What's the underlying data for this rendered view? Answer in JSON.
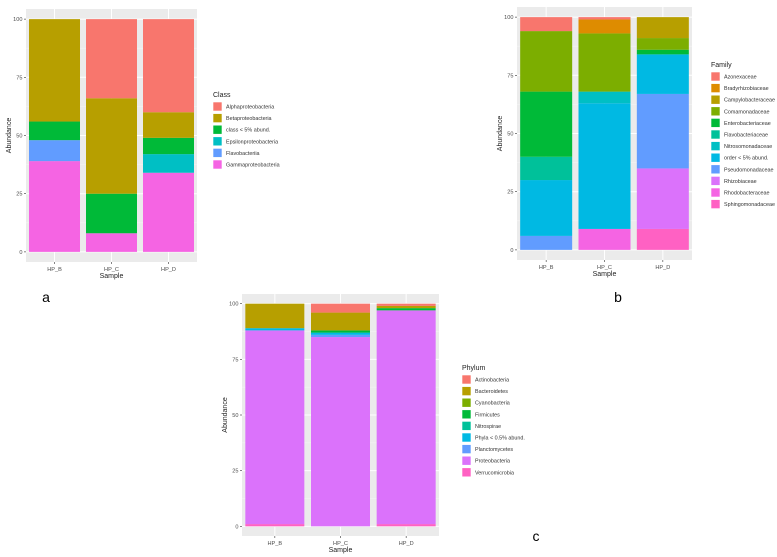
{
  "chart_data": [
    {
      "type": "bar",
      "stacked": true,
      "panel_label": "a",
      "xlabel": "Sample",
      "ylabel": "Abundance",
      "ylim": [
        0,
        100
      ],
      "yticks": [
        0,
        25,
        50,
        75,
        100
      ],
      "categories": [
        "HP_B",
        "HP_C",
        "HP_D"
      ],
      "legend_title": "Class",
      "legend_position": "right",
      "series": [
        {
          "name": "Gammaproteobacteria",
          "color": "#F564E3",
          "values": [
            39,
            8,
            34
          ]
        },
        {
          "name": "Flavobacteriia",
          "color": "#619CFF",
          "values": [
            9,
            0,
            0
          ]
        },
        {
          "name": "Epsilonproteobacteria",
          "color": "#00BFC4",
          "values": [
            0,
            0,
            8
          ]
        },
        {
          "name": "class < 5% abund.",
          "color": "#00BA38",
          "values": [
            8,
            17,
            7
          ]
        },
        {
          "name": "Betaproteobacteria",
          "color": "#B79F00",
          "values": [
            44,
            41,
            11
          ]
        },
        {
          "name": "Alphaproteobacteria",
          "color": "#F8766D",
          "values": [
            0,
            34,
            40
          ]
        }
      ],
      "legend_order": [
        "Alphaproteobacteria",
        "Betaproteobacteria",
        "class < 5% abund.",
        "Epsilonproteobacteria",
        "Flavobacteriia",
        "Gammaproteobacteria"
      ]
    },
    {
      "type": "bar",
      "stacked": true,
      "panel_label": "b",
      "xlabel": "Sample",
      "ylabel": "Abundance",
      "ylim": [
        0,
        100
      ],
      "yticks": [
        0,
        25,
        50,
        75,
        100
      ],
      "categories": [
        "HP_B",
        "HP_C",
        "HP_D"
      ],
      "legend_title": "Family",
      "legend_position": "right",
      "series": [
        {
          "name": "Sphingomonadaceae",
          "color": "#FF61C3",
          "values": [
            0,
            0,
            9
          ]
        },
        {
          "name": "Rhodobacteraceae",
          "color": "#F564E3",
          "values": [
            0,
            9,
            0
          ]
        },
        {
          "name": "Rhizobiaceae",
          "color": "#DB72FB",
          "values": [
            0,
            0,
            26
          ]
        },
        {
          "name": "Pseudomonadaceae",
          "color": "#619CFF",
          "values": [
            6,
            0,
            32
          ]
        },
        {
          "name": "order < 5% abund.",
          "color": "#00B9E3",
          "values": [
            24,
            54,
            17
          ]
        },
        {
          "name": "Nitrosomonadaceae",
          "color": "#00BFC4",
          "values": [
            0,
            5,
            0
          ]
        },
        {
          "name": "Flavobacteriaceae",
          "color": "#00C19A",
          "values": [
            10,
            0,
            0
          ]
        },
        {
          "name": "Enterobacteriaceae",
          "color": "#00BA38",
          "values": [
            28,
            0,
            2
          ]
        },
        {
          "name": "Comamonadaceae",
          "color": "#7CAE00",
          "values": [
            26,
            25,
            5
          ]
        },
        {
          "name": "Campylobacteraceae",
          "color": "#B79F00",
          "values": [
            0,
            0,
            9
          ]
        },
        {
          "name": "Bradyrhizobiaceae",
          "color": "#DE8C00",
          "values": [
            0,
            6,
            0
          ]
        },
        {
          "name": "Azonexaceae",
          "color": "#F8766D",
          "values": [
            6,
            1,
            0
          ]
        }
      ],
      "legend_order": [
        "Azonexaceae",
        "Bradyrhizobiaceae",
        "Campylobacteraceae",
        "Comamonadaceae",
        "Enterobacteriaceae",
        "Flavobacteriaceae",
        "Nitrosomonadaceae",
        "order < 5% abund.",
        "Pseudomonadaceae",
        "Rhizobiaceae",
        "Rhodobacteraceae",
        "Sphingomonadaceae"
      ]
    },
    {
      "type": "bar",
      "stacked": true,
      "panel_label": "c",
      "xlabel": "Sample",
      "ylabel": "Abundance",
      "ylim": [
        0,
        100
      ],
      "yticks": [
        0,
        25,
        50,
        75,
        100
      ],
      "categories": [
        "HP_B",
        "HP_C",
        "HP_D"
      ],
      "legend_title": "Phylum",
      "legend_position": "right",
      "series": [
        {
          "name": "Verrucomicrobia",
          "color": "#FF61C3",
          "values": [
            1,
            0,
            1
          ]
        },
        {
          "name": "Proteobacteria",
          "color": "#DB72FB",
          "values": [
            87,
            85,
            96
          ]
        },
        {
          "name": "Planctomycetes",
          "color": "#619CFF",
          "values": [
            0,
            1,
            0
          ]
        },
        {
          "name": "Phyla < 0.5% abund.",
          "color": "#00B9E3",
          "values": [
            1,
            1,
            0
          ]
        },
        {
          "name": "Nitrospirae",
          "color": "#00C19A",
          "values": [
            0,
            0,
            0
          ]
        },
        {
          "name": "Firmicutes",
          "color": "#00BA38",
          "values": [
            0,
            1,
            1
          ]
        },
        {
          "name": "Cyanobacteria",
          "color": "#7CAE00",
          "values": [
            0,
            0,
            0
          ]
        },
        {
          "name": "Bacteroidetes",
          "color": "#B79F00",
          "values": [
            11,
            8,
            1
          ]
        },
        {
          "name": "Actinobacteria",
          "color": "#F8766D",
          "values": [
            0,
            4,
            1
          ]
        }
      ],
      "legend_order": [
        "Actinobacteria",
        "Bacteroidetes",
        "Cyanobacteria",
        "Firmicutes",
        "Nitrospirae",
        "Phyla < 0.5% abund.",
        "Planctomycetes",
        "Proteobacteria",
        "Verrucomicrobia"
      ]
    }
  ]
}
